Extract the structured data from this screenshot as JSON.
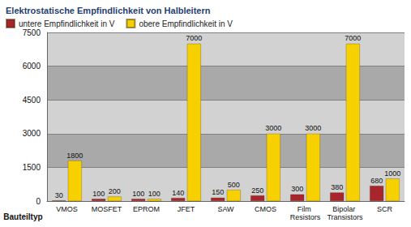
{
  "chart_data": {
    "type": "bar",
    "title": "Elektrostatische Empfindlichkeit von Halbleitern",
    "x_label": "Bauteiltyp",
    "categories": [
      "VMOS",
      "MOSFET",
      "EPROM",
      "JFET",
      "SAW",
      "CMOS",
      "Film Resistors",
      "Bipolar Transistors",
      "SCR"
    ],
    "series": [
      {
        "name": "untere Empfindlichkeit in V",
        "color": "#a8262b",
        "values": [
          30,
          100,
          100,
          140,
          150,
          250,
          300,
          380,
          680
        ]
      },
      {
        "name": "obere Empfindlichkeit in V",
        "color": "#f7d000",
        "values": [
          1800,
          200,
          100,
          7000,
          500,
          3000,
          3000,
          7000,
          1000
        ]
      }
    ],
    "ylim": [
      0,
      7500
    ],
    "yticks": [
      0,
      1500,
      3000,
      4500,
      6000,
      7500
    ],
    "grid": true,
    "legend": "top-left",
    "data_labels": true
  }
}
